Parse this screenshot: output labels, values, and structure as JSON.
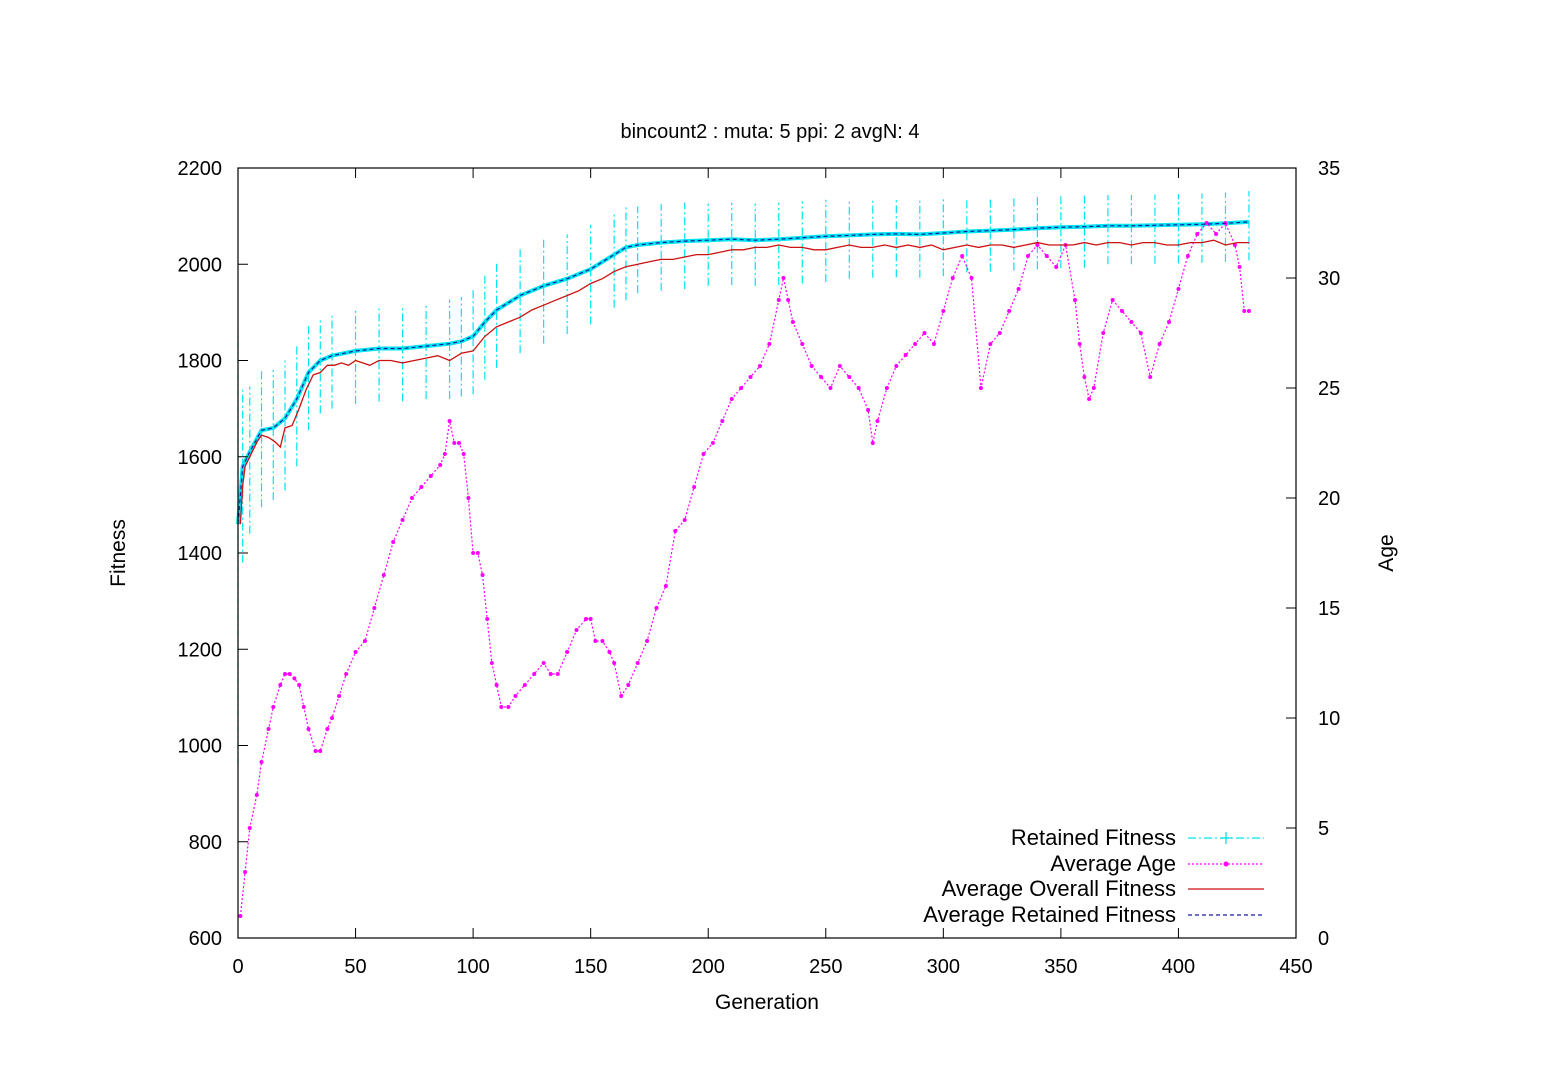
{
  "chart_data": {
    "type": "line",
    "title": "bincount2 : muta: 5  ppi: 2 avgN: 4",
    "xlabel": "Generation",
    "ylabel": "Fitness",
    "y2label": "Age",
    "xlim": [
      0,
      450
    ],
    "ylim": [
      600,
      2200
    ],
    "y2lim": [
      0,
      35
    ],
    "x_ticks": [
      0,
      50,
      100,
      150,
      200,
      250,
      300,
      350,
      400,
      450
    ],
    "y_ticks": [
      600,
      800,
      1000,
      1200,
      1400,
      1600,
      1800,
      2000,
      2200
    ],
    "y2_ticks": [
      0,
      5,
      10,
      15,
      20,
      25,
      30,
      35
    ],
    "grid": false,
    "legend_position": "bottom-right",
    "colors": {
      "retained": "#00e5ee",
      "age": "#ff00ff",
      "overall": "#cc1111",
      "avg_retained": "#1a1aa6"
    },
    "series": [
      {
        "name": "Retained Fitness",
        "axis": "y1",
        "style": "errorbars-dashdot",
        "x": [
          0,
          2,
          5,
          10,
          15,
          20,
          25,
          30,
          35,
          40,
          50,
          60,
          70,
          80,
          90,
          95,
          100,
          105,
          110,
          120,
          130,
          140,
          150,
          160,
          165,
          170,
          180,
          190,
          200,
          210,
          220,
          230,
          240,
          250,
          260,
          270,
          280,
          290,
          300,
          310,
          320,
          330,
          340,
          350,
          360,
          370,
          380,
          390,
          400,
          410,
          420,
          430
        ],
        "values": [
          1460,
          1580,
          1610,
          1655,
          1660,
          1680,
          1720,
          1775,
          1800,
          1810,
          1820,
          1825,
          1825,
          1830,
          1835,
          1840,
          1850,
          1880,
          1905,
          1935,
          1955,
          1970,
          1990,
          2020,
          2035,
          2040,
          2045,
          2048,
          2050,
          2052,
          2050,
          2052,
          2055,
          2058,
          2060,
          2062,
          2063,
          2062,
          2065,
          2068,
          2070,
          2072,
          2075,
          2077,
          2078,
          2080,
          2080,
          2081,
          2082,
          2083,
          2085,
          2088
        ],
        "spread": [
          500,
          200,
          170,
          160,
          150,
          150,
          140,
          120,
          110,
          110,
          110,
          110,
          110,
          110,
          115,
          115,
          120,
          120,
          120,
          120,
          120,
          115,
          115,
          110,
          110,
          100,
          100,
          100,
          95,
          95,
          95,
          95,
          95,
          95,
          90,
          90,
          90,
          90,
          90,
          85,
          85,
          85,
          85,
          85,
          85,
          80,
          80,
          80,
          80,
          80,
          80,
          80
        ]
      },
      {
        "name": "Average Age",
        "axis": "y2",
        "x": [
          1,
          3,
          5,
          8,
          10,
          13,
          15,
          18,
          20,
          22,
          24,
          26,
          28,
          30,
          33,
          35,
          38,
          40,
          43,
          46,
          50,
          54,
          58,
          62,
          66,
          70,
          74,
          78,
          82,
          86,
          88,
          90,
          92,
          94,
          96,
          98,
          100,
          102,
          104,
          106,
          108,
          110,
          112,
          115,
          118,
          122,
          126,
          130,
          133,
          136,
          140,
          144,
          148,
          150,
          152,
          155,
          158,
          160,
          163,
          166,
          170,
          174,
          178,
          182,
          186,
          190,
          194,
          198,
          202,
          206,
          210,
          214,
          218,
          222,
          226,
          230,
          232,
          234,
          236,
          240,
          244,
          248,
          252,
          256,
          260,
          264,
          268,
          270,
          272,
          276,
          280,
          284,
          288,
          292,
          296,
          300,
          304,
          308,
          312,
          316,
          320,
          324,
          328,
          332,
          336,
          340,
          344,
          348,
          352,
          356,
          358,
          360,
          362,
          364,
          368,
          372,
          376,
          380,
          384,
          388,
          392,
          396,
          400,
          404,
          408,
          412,
          416,
          420,
          424,
          426,
          428,
          430
        ],
        "values": [
          1,
          3,
          5,
          6.5,
          8,
          9.5,
          10.5,
          11.5,
          12,
          12,
          11.8,
          11.5,
          10.5,
          9.5,
          8.5,
          8.5,
          9.5,
          10,
          11,
          12,
          13,
          13.5,
          15,
          16.5,
          18,
          19,
          20,
          20.5,
          21,
          21.5,
          22,
          23.5,
          22.5,
          22.5,
          22,
          20,
          17.5,
          17.5,
          16.5,
          14.5,
          12.5,
          11.5,
          10.5,
          10.5,
          11,
          11.5,
          12,
          12.5,
          12,
          12,
          13,
          14,
          14.5,
          14.5,
          13.5,
          13.5,
          13,
          12.5,
          11,
          11.5,
          12.5,
          13.5,
          15,
          16,
          18.5,
          19,
          20.5,
          22,
          22.5,
          23.5,
          24.5,
          25,
          25.5,
          26,
          27,
          29,
          30,
          29,
          28,
          27,
          26,
          25.5,
          25,
          26,
          25.5,
          25,
          24,
          22.5,
          23.5,
          25,
          26,
          26.5,
          27,
          27.5,
          27,
          28.5,
          30,
          31,
          30,
          25,
          27,
          27.5,
          28.5,
          29.5,
          31,
          31.5,
          31,
          30.5,
          31.5,
          29,
          27,
          25.5,
          24.5,
          25,
          27.5,
          29,
          28.5,
          28,
          27.5,
          25.5,
          27,
          28,
          29.5,
          31,
          32,
          32.5,
          32,
          32.5,
          31.5,
          30.5,
          28.5,
          28.5
        ]
      },
      {
        "name": "Average Overall Fitness",
        "axis": "y1",
        "x": [
          1,
          2,
          3,
          5,
          8,
          10,
          13,
          16,
          18,
          20,
          23,
          26,
          29,
          32,
          35,
          38,
          41,
          44,
          47,
          50,
          53,
          56,
          60,
          65,
          70,
          75,
          80,
          85,
          90,
          95,
          100,
          105,
          110,
          115,
          120,
          125,
          130,
          135,
          140,
          145,
          150,
          155,
          160,
          165,
          170,
          175,
          180,
          185,
          190,
          195,
          200,
          205,
          210,
          215,
          220,
          225,
          230,
          235,
          240,
          245,
          250,
          255,
          260,
          265,
          270,
          275,
          280,
          285,
          290,
          295,
          300,
          305,
          310,
          315,
          320,
          325,
          330,
          335,
          340,
          345,
          350,
          355,
          360,
          365,
          370,
          375,
          380,
          385,
          390,
          395,
          400,
          405,
          410,
          415,
          420,
          425,
          430
        ],
        "values": [
          1460,
          1540,
          1580,
          1600,
          1630,
          1645,
          1640,
          1630,
          1620,
          1660,
          1665,
          1700,
          1740,
          1770,
          1775,
          1790,
          1790,
          1795,
          1790,
          1800,
          1795,
          1790,
          1800,
          1800,
          1795,
          1800,
          1805,
          1810,
          1800,
          1815,
          1820,
          1850,
          1870,
          1880,
          1890,
          1905,
          1915,
          1925,
          1935,
          1945,
          1960,
          1970,
          1985,
          1995,
          2000,
          2005,
          2010,
          2010,
          2015,
          2020,
          2020,
          2025,
          2030,
          2030,
          2035,
          2035,
          2040,
          2035,
          2035,
          2030,
          2030,
          2035,
          2040,
          2035,
          2035,
          2040,
          2035,
          2040,
          2035,
          2040,
          2030,
          2035,
          2040,
          2035,
          2040,
          2040,
          2035,
          2040,
          2045,
          2040,
          2040,
          2040,
          2045,
          2040,
          2045,
          2045,
          2040,
          2045,
          2045,
          2040,
          2040,
          2045,
          2045,
          2050,
          2040,
          2045,
          2045
        ]
      },
      {
        "name": "Average Retained Fitness",
        "axis": "y1",
        "x": [
          0,
          2,
          5,
          10,
          15,
          20,
          25,
          30,
          35,
          40,
          50,
          60,
          70,
          80,
          90,
          95,
          100,
          105,
          110,
          120,
          130,
          140,
          150,
          160,
          165,
          170,
          180,
          190,
          200,
          210,
          220,
          230,
          240,
          250,
          260,
          270,
          280,
          290,
          300,
          310,
          320,
          330,
          340,
          350,
          360,
          370,
          380,
          390,
          400,
          410,
          420,
          430
        ],
        "values": [
          1460,
          1580,
          1610,
          1655,
          1660,
          1680,
          1720,
          1775,
          1800,
          1810,
          1820,
          1825,
          1825,
          1830,
          1835,
          1840,
          1850,
          1880,
          1905,
          1935,
          1955,
          1970,
          1990,
          2020,
          2035,
          2040,
          2045,
          2048,
          2050,
          2052,
          2050,
          2052,
          2055,
          2058,
          2060,
          2062,
          2063,
          2062,
          2065,
          2068,
          2070,
          2072,
          2075,
          2077,
          2078,
          2080,
          2080,
          2081,
          2082,
          2083,
          2085,
          2088
        ]
      }
    ]
  }
}
